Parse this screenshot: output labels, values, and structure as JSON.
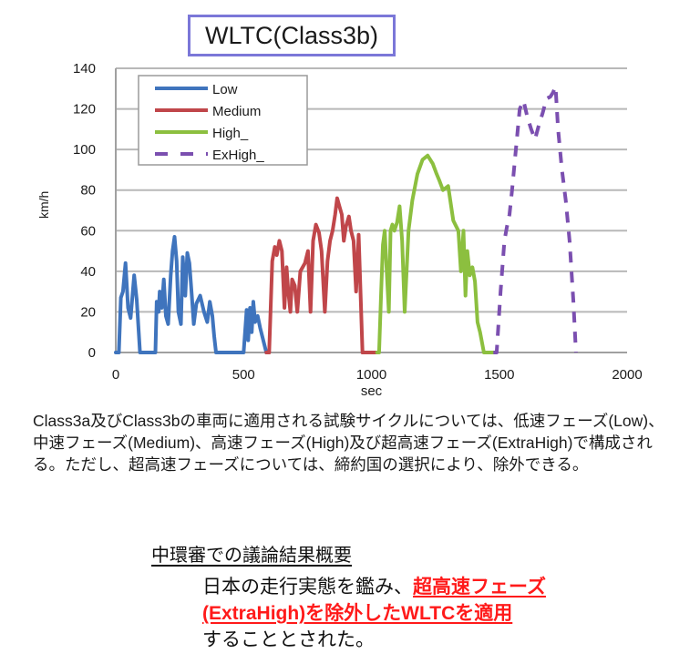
{
  "title": "WLTC(Class3b)",
  "chart_data": {
    "type": "line",
    "title": "WLTC(Class3b)",
    "xlabel": "sec",
    "ylabel": "km/h",
    "xlim": [
      0,
      2000
    ],
    "ylim": [
      0,
      140
    ],
    "x_ticks": [
      "0",
      "500",
      "1000",
      "1500",
      "2000"
    ],
    "y_ticks": [
      "0",
      "20",
      "40",
      "60",
      "80",
      "100",
      "120",
      "140"
    ],
    "grid": "horizontal",
    "legend_position": "upper-left",
    "series": [
      {
        "name": "Low",
        "color": "#3f74bd",
        "style": "solid",
        "x": [
          0,
          12,
          20,
          28,
          38,
          48,
          58,
          72,
          82,
          95,
          110,
          140,
          155,
          160,
          168,
          172,
          180,
          188,
          196,
          205,
          215,
          222,
          230,
          238,
          245,
          255,
          262,
          272,
          280,
          288,
          298,
          305,
          315,
          330,
          345,
          358,
          368,
          378,
          385,
          392,
          400,
          415,
          440,
          470,
          500,
          512,
          518,
          525,
          532,
          538,
          545,
          555,
          565,
          589
        ],
        "y": [
          0,
          0,
          27,
          30,
          44,
          22,
          17,
          38,
          26,
          0,
          0,
          0,
          0,
          25,
          20,
          30,
          22,
          36,
          18,
          14,
          38,
          50,
          57,
          45,
          20,
          14,
          47,
          28,
          49,
          44,
          27,
          14,
          24,
          28,
          20,
          15,
          25,
          18,
          8,
          0,
          0,
          0,
          0,
          0,
          0,
          21,
          6,
          22,
          10,
          25,
          15,
          18,
          12,
          0
        ]
      },
      {
        "name": "Medium",
        "color": "#c0464a",
        "style": "solid",
        "x": [
          589,
          600,
          612,
          622,
          630,
          640,
          650,
          660,
          668,
          675,
          683,
          690,
          700,
          710,
          722,
          740,
          752,
          762,
          772,
          783,
          795,
          805,
          818,
          828,
          838,
          848,
          858,
          866,
          875,
          884,
          892,
          900,
          912,
          920,
          930,
          940,
          950,
          965,
          985,
          1022
        ],
        "y": [
          0,
          0,
          45,
          52,
          48,
          55,
          50,
          22,
          42,
          30,
          20,
          36,
          33,
          20,
          40,
          44,
          50,
          20,
          55,
          63,
          59,
          50,
          20,
          45,
          55,
          60,
          68,
          76,
          72,
          68,
          55,
          62,
          67,
          60,
          55,
          30,
          58,
          0,
          0,
          0
        ]
      },
      {
        "name": "High",
        "color": "#8cbf3f",
        "style": "solid",
        "x": [
          1022,
          1030,
          1038,
          1045,
          1052,
          1060,
          1068,
          1075,
          1082,
          1090,
          1100,
          1110,
          1120,
          1130,
          1145,
          1160,
          1180,
          1200,
          1220,
          1240,
          1255,
          1265,
          1280,
          1300,
          1320,
          1340,
          1350,
          1360,
          1368,
          1375,
          1385,
          1395,
          1405,
          1415,
          1425,
          1440,
          1455,
          1477
        ],
        "y": [
          0,
          0,
          30,
          53,
          60,
          40,
          20,
          60,
          63,
          60,
          64,
          72,
          55,
          20,
          60,
          75,
          88,
          95,
          97,
          93,
          88,
          85,
          80,
          82,
          65,
          60,
          40,
          60,
          28,
          50,
          38,
          42,
          35,
          15,
          10,
          0,
          0,
          0
        ]
      },
      {
        "name": "ExHigh",
        "color": "#7b4fb0",
        "style": "dashed",
        "x": [
          1477,
          1490,
          1505,
          1520,
          1530,
          1540,
          1550,
          1565,
          1580,
          1595,
          1610,
          1625,
          1640,
          1655,
          1670,
          1685,
          1700,
          1710,
          1720,
          1730,
          1745,
          1760,
          1775,
          1790,
          1800
        ],
        "y": [
          0,
          0,
          30,
          55,
          62,
          68,
          80,
          100,
          120,
          124,
          116,
          110,
          105,
          112,
          118,
          125,
          126,
          128,
          131,
          110,
          90,
          75,
          55,
          25,
          0
        ]
      }
    ]
  },
  "legend": {
    "items": [
      {
        "label": "Low",
        "color": "#3f74bd",
        "style": "solid"
      },
      {
        "label": "Medium",
        "color": "#c0464a",
        "style": "solid"
      },
      {
        "label": "High_",
        "color": "#8cbf3f",
        "style": "solid"
      },
      {
        "label": "ExHigh_",
        "color": "#7b4fb0",
        "style": "dashed"
      }
    ]
  },
  "description": "Class3a及びClass3bの車両に適用される試験サイクルについては、低速フェーズ(Low)、中速フェーズ(Medium)、高速フェーズ(High)及び超高速フェーズ(ExtraHigh)で構成される。ただし、超高速フェーズについては、締約国の選択により、除外できる。",
  "summary": {
    "heading": "中環審での議論結果概要",
    "text_before": "日本の走行実態を鑑み、",
    "text_highlight": "超高速フェーズ(ExtraHigh)を除外したWLTCを適用",
    "text_after": "することとされた。",
    "highlight_color": "#ff1a1a"
  }
}
